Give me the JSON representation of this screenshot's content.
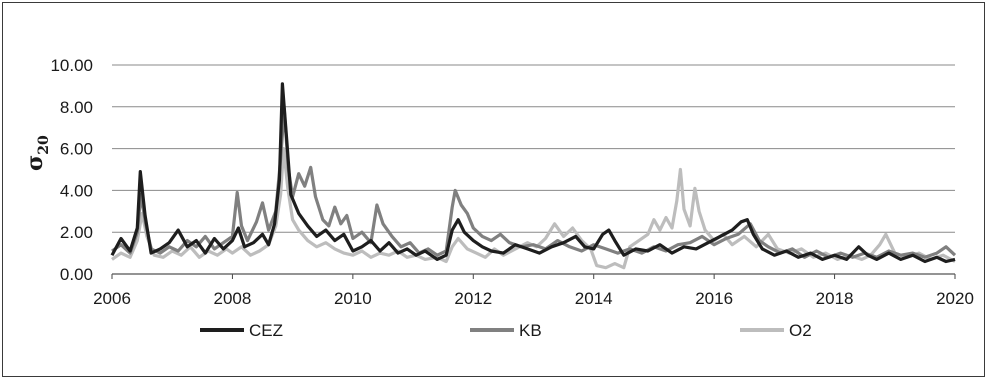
{
  "chart_data": {
    "type": "line",
    "title": "",
    "xlabel": "",
    "ylabel": "σ",
    "ylabel_subscript": "20",
    "xlim": [
      2006,
      2020
    ],
    "ylim": [
      0,
      10
    ],
    "x_ticks": [
      2006,
      2008,
      2010,
      2012,
      2014,
      2016,
      2018,
      2020
    ],
    "x_tick_labels": [
      "2006",
      "2008",
      "2010",
      "2012",
      "2014",
      "2016",
      "2018",
      "2020"
    ],
    "y_ticks": [
      0,
      2,
      4,
      6,
      8,
      10
    ],
    "y_tick_labels": [
      "0.00",
      "2.00",
      "4.00",
      "6.00",
      "8.00",
      "10.00"
    ],
    "grid": "horizontal",
    "legend_position": "bottom",
    "series": [
      {
        "name": "CEZ",
        "color": "#1e1e1e",
        "points": [
          [
            2006.0,
            0.9
          ],
          [
            2006.15,
            1.7
          ],
          [
            2006.3,
            1.1
          ],
          [
            2006.42,
            2.2
          ],
          [
            2006.47,
            4.9
          ],
          [
            2006.55,
            2.8
          ],
          [
            2006.65,
            1.0
          ],
          [
            2006.8,
            1.2
          ],
          [
            2006.95,
            1.5
          ],
          [
            2007.1,
            2.1
          ],
          [
            2007.25,
            1.3
          ],
          [
            2007.4,
            1.6
          ],
          [
            2007.55,
            1.0
          ],
          [
            2007.7,
            1.7
          ],
          [
            2007.85,
            1.2
          ],
          [
            2008.0,
            1.6
          ],
          [
            2008.1,
            2.2
          ],
          [
            2008.2,
            1.3
          ],
          [
            2008.35,
            1.5
          ],
          [
            2008.5,
            1.9
          ],
          [
            2008.6,
            1.4
          ],
          [
            2008.7,
            2.4
          ],
          [
            2008.78,
            4.5
          ],
          [
            2008.83,
            9.1
          ],
          [
            2008.9,
            6.5
          ],
          [
            2008.97,
            3.8
          ],
          [
            2009.1,
            2.9
          ],
          [
            2009.25,
            2.3
          ],
          [
            2009.4,
            1.8
          ],
          [
            2009.55,
            2.1
          ],
          [
            2009.7,
            1.6
          ],
          [
            2009.85,
            1.9
          ],
          [
            2010.0,
            1.1
          ],
          [
            2010.15,
            1.3
          ],
          [
            2010.3,
            1.6
          ],
          [
            2010.45,
            1.1
          ],
          [
            2010.6,
            1.5
          ],
          [
            2010.75,
            1.0
          ],
          [
            2010.9,
            1.2
          ],
          [
            2011.05,
            0.9
          ],
          [
            2011.2,
            1.1
          ],
          [
            2011.4,
            0.7
          ],
          [
            2011.55,
            0.9
          ],
          [
            2011.65,
            2.1
          ],
          [
            2011.75,
            2.6
          ],
          [
            2011.85,
            2.0
          ],
          [
            2012.0,
            1.6
          ],
          [
            2012.15,
            1.3
          ],
          [
            2012.3,
            1.1
          ],
          [
            2012.5,
            1.0
          ],
          [
            2012.7,
            1.4
          ],
          [
            2012.9,
            1.2
          ],
          [
            2013.1,
            1.0
          ],
          [
            2013.3,
            1.3
          ],
          [
            2013.5,
            1.5
          ],
          [
            2013.7,
            1.8
          ],
          [
            2013.85,
            1.3
          ],
          [
            2014.0,
            1.2
          ],
          [
            2014.15,
            1.9
          ],
          [
            2014.25,
            2.1
          ],
          [
            2014.35,
            1.6
          ],
          [
            2014.5,
            0.9
          ],
          [
            2014.7,
            1.2
          ],
          [
            2014.9,
            1.1
          ],
          [
            2015.1,
            1.4
          ],
          [
            2015.3,
            1.0
          ],
          [
            2015.5,
            1.3
          ],
          [
            2015.7,
            1.2
          ],
          [
            2015.9,
            1.5
          ],
          [
            2016.1,
            1.8
          ],
          [
            2016.3,
            2.1
          ],
          [
            2016.45,
            2.5
          ],
          [
            2016.55,
            2.6
          ],
          [
            2016.65,
            1.9
          ],
          [
            2016.8,
            1.2
          ],
          [
            2017.0,
            0.9
          ],
          [
            2017.2,
            1.1
          ],
          [
            2017.4,
            0.8
          ],
          [
            2017.6,
            1.0
          ],
          [
            2017.8,
            0.7
          ],
          [
            2018.0,
            0.9
          ],
          [
            2018.2,
            0.7
          ],
          [
            2018.4,
            1.3
          ],
          [
            2018.55,
            0.9
          ],
          [
            2018.7,
            0.7
          ],
          [
            2018.9,
            1.0
          ],
          [
            2019.1,
            0.7
          ],
          [
            2019.3,
            0.9
          ],
          [
            2019.5,
            0.6
          ],
          [
            2019.7,
            0.8
          ],
          [
            2019.85,
            0.6
          ],
          [
            2020.0,
            0.7
          ]
        ]
      },
      {
        "name": "KB",
        "color": "#808080",
        "points": [
          [
            2006.0,
            1.1
          ],
          [
            2006.15,
            1.4
          ],
          [
            2006.3,
            1.0
          ],
          [
            2006.42,
            2.0
          ],
          [
            2006.48,
            3.8
          ],
          [
            2006.56,
            2.4
          ],
          [
            2006.65,
            1.2
          ],
          [
            2006.8,
            1.0
          ],
          [
            2006.95,
            1.3
          ],
          [
            2007.1,
            1.1
          ],
          [
            2007.25,
            1.6
          ],
          [
            2007.4,
            1.3
          ],
          [
            2007.55,
            1.8
          ],
          [
            2007.7,
            1.2
          ],
          [
            2007.85,
            1.5
          ],
          [
            2008.0,
            1.8
          ],
          [
            2008.08,
            3.9
          ],
          [
            2008.15,
            2.3
          ],
          [
            2008.25,
            1.6
          ],
          [
            2008.4,
            2.5
          ],
          [
            2008.5,
            3.4
          ],
          [
            2008.6,
            2.1
          ],
          [
            2008.72,
            3.0
          ],
          [
            2008.8,
            5.5
          ],
          [
            2008.86,
            7.9
          ],
          [
            2008.93,
            5.0
          ],
          [
            2009.0,
            3.7
          ],
          [
            2009.1,
            4.8
          ],
          [
            2009.2,
            4.2
          ],
          [
            2009.3,
            5.1
          ],
          [
            2009.38,
            3.7
          ],
          [
            2009.5,
            2.6
          ],
          [
            2009.6,
            2.3
          ],
          [
            2009.7,
            3.2
          ],
          [
            2009.8,
            2.4
          ],
          [
            2009.9,
            2.8
          ],
          [
            2010.0,
            1.7
          ],
          [
            2010.15,
            2.0
          ],
          [
            2010.3,
            1.5
          ],
          [
            2010.4,
            3.3
          ],
          [
            2010.5,
            2.4
          ],
          [
            2010.65,
            1.8
          ],
          [
            2010.8,
            1.3
          ],
          [
            2010.95,
            1.5
          ],
          [
            2011.1,
            1.0
          ],
          [
            2011.25,
            1.2
          ],
          [
            2011.4,
            0.9
          ],
          [
            2011.55,
            1.1
          ],
          [
            2011.65,
            3.2
          ],
          [
            2011.7,
            4.0
          ],
          [
            2011.8,
            3.3
          ],
          [
            2011.9,
            2.9
          ],
          [
            2012.0,
            2.2
          ],
          [
            2012.15,
            1.8
          ],
          [
            2012.3,
            1.6
          ],
          [
            2012.45,
            1.9
          ],
          [
            2012.6,
            1.5
          ],
          [
            2012.8,
            1.3
          ],
          [
            2013.0,
            1.4
          ],
          [
            2013.2,
            1.2
          ],
          [
            2013.4,
            1.6
          ],
          [
            2013.6,
            1.3
          ],
          [
            2013.8,
            1.1
          ],
          [
            2014.0,
            1.4
          ],
          [
            2014.2,
            1.2
          ],
          [
            2014.4,
            1.0
          ],
          [
            2014.6,
            1.2
          ],
          [
            2014.8,
            1.0
          ],
          [
            2015.0,
            1.3
          ],
          [
            2015.2,
            1.1
          ],
          [
            2015.4,
            1.4
          ],
          [
            2015.6,
            1.5
          ],
          [
            2015.8,
            1.8
          ],
          [
            2016.0,
            1.4
          ],
          [
            2016.2,
            1.7
          ],
          [
            2016.4,
            1.9
          ],
          [
            2016.6,
            2.4
          ],
          [
            2016.75,
            1.6
          ],
          [
            2016.9,
            1.3
          ],
          [
            2017.1,
            1.0
          ],
          [
            2017.3,
            1.2
          ],
          [
            2017.5,
            0.8
          ],
          [
            2017.7,
            1.1
          ],
          [
            2017.9,
            0.8
          ],
          [
            2018.1,
            1.0
          ],
          [
            2018.3,
            0.8
          ],
          [
            2018.5,
            1.0
          ],
          [
            2018.7,
            0.8
          ],
          [
            2018.9,
            1.1
          ],
          [
            2019.1,
            0.9
          ],
          [
            2019.3,
            1.0
          ],
          [
            2019.5,
            0.8
          ],
          [
            2019.7,
            1.0
          ],
          [
            2019.85,
            1.3
          ],
          [
            2020.0,
            0.9
          ]
        ]
      },
      {
        "name": "O2",
        "color": "#bdbdbd",
        "points": [
          [
            2006.0,
            0.7
          ],
          [
            2006.15,
            1.0
          ],
          [
            2006.3,
            0.8
          ],
          [
            2006.42,
            1.6
          ],
          [
            2006.5,
            2.9
          ],
          [
            2006.58,
            1.8
          ],
          [
            2006.7,
            0.9
          ],
          [
            2006.85,
            0.8
          ],
          [
            2007.0,
            1.1
          ],
          [
            2007.15,
            0.9
          ],
          [
            2007.3,
            1.3
          ],
          [
            2007.45,
            0.8
          ],
          [
            2007.6,
            1.1
          ],
          [
            2007.75,
            0.9
          ],
          [
            2007.9,
            1.2
          ],
          [
            2008.0,
            1.0
          ],
          [
            2008.15,
            1.3
          ],
          [
            2008.3,
            0.9
          ],
          [
            2008.45,
            1.1
          ],
          [
            2008.6,
            1.4
          ],
          [
            2008.72,
            2.3
          ],
          [
            2008.8,
            3.8
          ],
          [
            2008.85,
            6.0
          ],
          [
            2008.92,
            4.1
          ],
          [
            2009.0,
            2.6
          ],
          [
            2009.1,
            2.1
          ],
          [
            2009.25,
            1.6
          ],
          [
            2009.4,
            1.3
          ],
          [
            2009.55,
            1.5
          ],
          [
            2009.7,
            1.2
          ],
          [
            2009.85,
            1.0
          ],
          [
            2010.0,
            0.9
          ],
          [
            2010.15,
            1.1
          ],
          [
            2010.3,
            0.8
          ],
          [
            2010.45,
            1.0
          ],
          [
            2010.6,
            0.9
          ],
          [
            2010.75,
            1.1
          ],
          [
            2010.9,
            0.8
          ],
          [
            2011.05,
            0.9
          ],
          [
            2011.2,
            0.7
          ],
          [
            2011.4,
            0.8
          ],
          [
            2011.55,
            0.6
          ],
          [
            2011.65,
            1.3
          ],
          [
            2011.75,
            1.7
          ],
          [
            2011.9,
            1.2
          ],
          [
            2012.05,
            1.0
          ],
          [
            2012.2,
            0.8
          ],
          [
            2012.35,
            1.2
          ],
          [
            2012.5,
            0.9
          ],
          [
            2012.7,
            1.2
          ],
          [
            2012.9,
            1.5
          ],
          [
            2013.05,
            1.3
          ],
          [
            2013.2,
            1.7
          ],
          [
            2013.35,
            2.4
          ],
          [
            2013.5,
            1.8
          ],
          [
            2013.65,
            2.2
          ],
          [
            2013.8,
            1.6
          ],
          [
            2013.95,
            1.2
          ],
          [
            2014.05,
            0.4
          ],
          [
            2014.2,
            0.3
          ],
          [
            2014.35,
            0.5
          ],
          [
            2014.5,
            0.3
          ],
          [
            2014.6,
            1.3
          ],
          [
            2014.75,
            1.6
          ],
          [
            2014.9,
            1.9
          ],
          [
            2015.0,
            2.6
          ],
          [
            2015.1,
            2.1
          ],
          [
            2015.2,
            2.7
          ],
          [
            2015.3,
            2.2
          ],
          [
            2015.38,
            3.5
          ],
          [
            2015.44,
            5.0
          ],
          [
            2015.5,
            3.1
          ],
          [
            2015.6,
            2.3
          ],
          [
            2015.68,
            4.1
          ],
          [
            2015.75,
            3.0
          ],
          [
            2015.85,
            2.1
          ],
          [
            2016.0,
            1.6
          ],
          [
            2016.15,
            1.9
          ],
          [
            2016.3,
            1.4
          ],
          [
            2016.5,
            1.8
          ],
          [
            2016.7,
            1.3
          ],
          [
            2016.9,
            1.9
          ],
          [
            2017.05,
            1.2
          ],
          [
            2017.25,
            1.0
          ],
          [
            2017.45,
            1.2
          ],
          [
            2017.65,
            0.8
          ],
          [
            2017.85,
            1.0
          ],
          [
            2018.05,
            0.7
          ],
          [
            2018.25,
            0.9
          ],
          [
            2018.45,
            0.7
          ],
          [
            2018.6,
            0.9
          ],
          [
            2018.75,
            1.4
          ],
          [
            2018.85,
            1.9
          ],
          [
            2019.0,
            1.0
          ],
          [
            2019.2,
            0.8
          ],
          [
            2019.4,
            1.0
          ],
          [
            2019.6,
            0.7
          ],
          [
            2019.8,
            0.9
          ],
          [
            2020.0,
            0.6
          ]
        ]
      }
    ]
  }
}
